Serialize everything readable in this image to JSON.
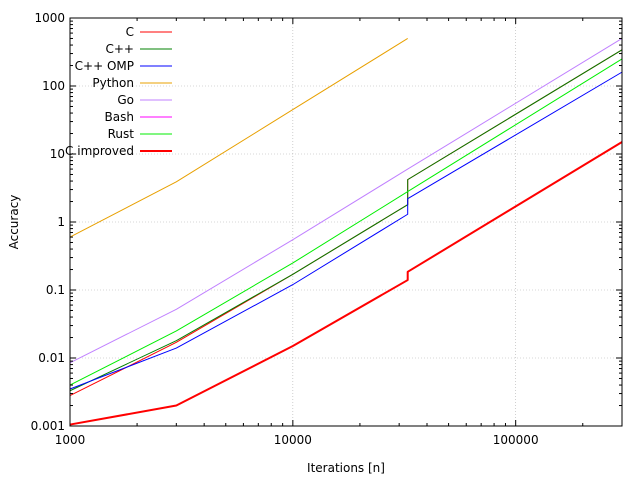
{
  "chart_data": {
    "type": "line",
    "title": "",
    "xlabel": "Iterations [n]",
    "ylabel": "Accuracy",
    "xscale": "log",
    "yscale": "log",
    "xlim": [
      1000,
      300000
    ],
    "ylim": [
      0.001,
      1000
    ],
    "xticks": [
      1000,
      10000,
      100000
    ],
    "xtick_labels": [
      "1000",
      "10000",
      "100000"
    ],
    "yticks": [
      0.001,
      0.01,
      0.1,
      1,
      10,
      100,
      1000
    ],
    "ytick_labels": [
      "0.001",
      "0.01",
      "0.1",
      "1",
      "10",
      "100",
      "1000"
    ],
    "grid": true,
    "legend_position": "top-left",
    "series": [
      {
        "name": "C",
        "color": "#ff0000",
        "width": 1,
        "points": [
          [
            1000,
            0.0028
          ],
          [
            3000,
            0.017
          ],
          [
            10000,
            0.17
          ],
          [
            32768,
            1.8
          ],
          [
            32768,
            4.2
          ],
          [
            300000,
            340
          ]
        ]
      },
      {
        "name": "C++",
        "color": "#008000",
        "width": 1,
        "points": [
          [
            1000,
            0.0033
          ],
          [
            3000,
            0.018
          ],
          [
            10000,
            0.17
          ],
          [
            32768,
            1.8
          ],
          [
            32768,
            4.2
          ],
          [
            300000,
            340
          ]
        ]
      },
      {
        "name": "C++ OMP",
        "color": "#0000ff",
        "width": 1,
        "points": [
          [
            1000,
            0.0035
          ],
          [
            3000,
            0.014
          ],
          [
            10000,
            0.12
          ],
          [
            32768,
            1.3
          ],
          [
            32768,
            2.2
          ],
          [
            300000,
            160
          ]
        ]
      },
      {
        "name": "Python",
        "color": "#e8a000",
        "width": 1,
        "points": [
          [
            1000,
            0.6
          ],
          [
            3000,
            3.9
          ],
          [
            10000,
            45
          ],
          [
            32768,
            500
          ]
        ]
      },
      {
        "name": "Go",
        "color": "#c080ff",
        "width": 1,
        "points": [
          [
            1000,
            0.0085
          ],
          [
            3000,
            0.052
          ],
          [
            10000,
            0.55
          ],
          [
            32768,
            6
          ],
          [
            300000,
            500
          ]
        ]
      },
      {
        "name": "Bash",
        "color": "#ff00ff",
        "width": 1,
        "points": []
      },
      {
        "name": "Rust",
        "color": "#00ee00",
        "width": 1,
        "points": [
          [
            1000,
            0.004
          ],
          [
            3000,
            0.025
          ],
          [
            10000,
            0.25
          ],
          [
            32768,
            2.8
          ],
          [
            300000,
            250
          ]
        ]
      },
      {
        "name": "C improved",
        "color": "#ff0000",
        "width": 2,
        "points": [
          [
            1000,
            0.00105
          ],
          [
            3000,
            0.002
          ],
          [
            10000,
            0.015
          ],
          [
            32768,
            0.14
          ],
          [
            32768,
            0.185
          ],
          [
            300000,
            15
          ]
        ]
      }
    ]
  }
}
